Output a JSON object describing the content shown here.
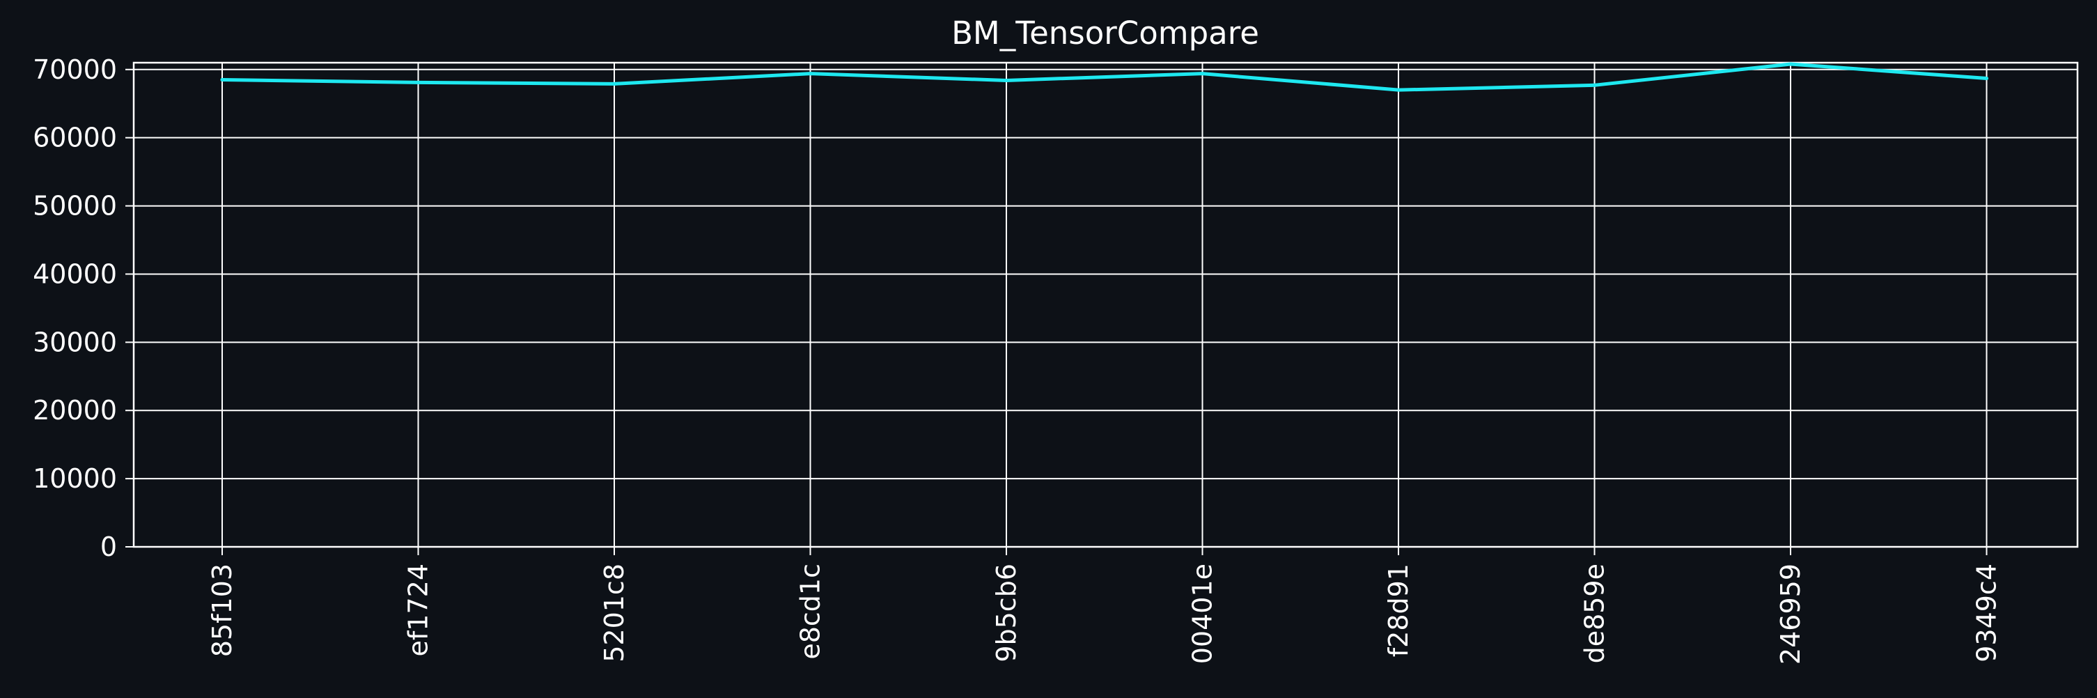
{
  "chart_data": {
    "type": "line",
    "title": "BM_TensorCompare",
    "xlabel": "",
    "ylabel": "",
    "categories": [
      "85f103",
      "ef1724",
      "5201c8",
      "e8cd1c",
      "9b5cb6",
      "00401e",
      "f28d91",
      "de859e",
      "246959",
      "9349c4"
    ],
    "series": [
      {
        "values": [
          68500,
          68100,
          67900,
          69400,
          68400,
          69400,
          67000,
          67700,
          70800,
          68700
        ]
      }
    ],
    "ylim": [
      0,
      71000
    ],
    "yticks": [
      0,
      10000,
      20000,
      30000,
      40000,
      50000,
      60000,
      70000
    ],
    "grid": true,
    "legend": "none",
    "colors": {
      "background": "#0d1117",
      "line": "#1ee8f0",
      "grid": "#ffffff",
      "text": "#ffffff"
    }
  }
}
